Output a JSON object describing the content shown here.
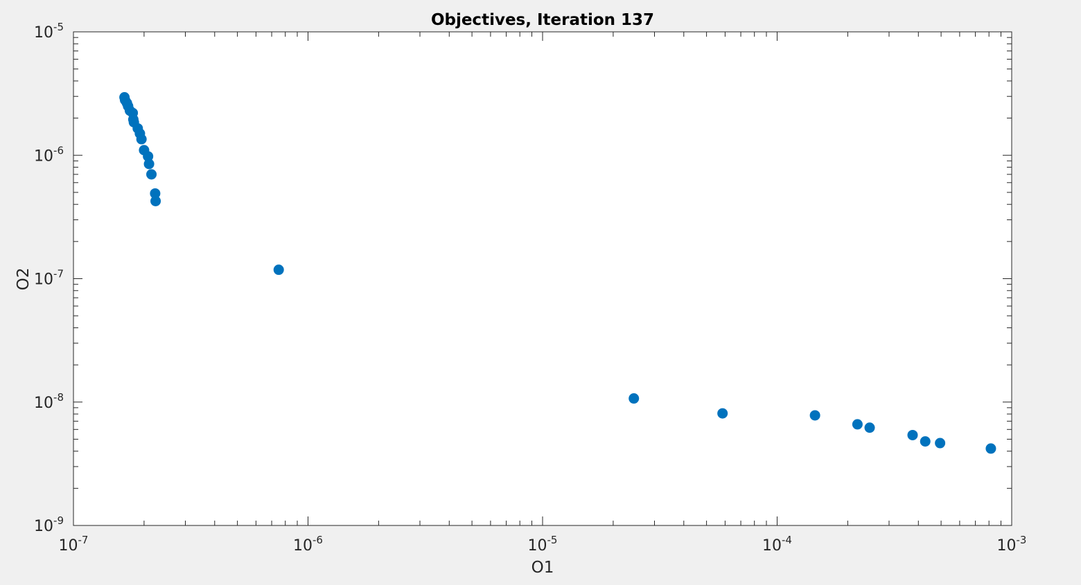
{
  "chart_data": {
    "type": "scatter",
    "title": "Objectives, Iteration 137",
    "xlabel": "O1",
    "ylabel": "O2",
    "xscale": "log",
    "yscale": "log",
    "xlim": [
      1e-07,
      0.001
    ],
    "ylim": [
      1e-09,
      1e-05
    ],
    "grid": false,
    "box": true,
    "x_ticks": [
      {
        "base": "10",
        "exp": "-7"
      },
      {
        "base": "10",
        "exp": "-6"
      },
      {
        "base": "10",
        "exp": "-5"
      },
      {
        "base": "10",
        "exp": "-4"
      },
      {
        "base": "10",
        "exp": "-3"
      }
    ],
    "y_ticks": [
      {
        "base": "10",
        "exp": "-9"
      },
      {
        "base": "10",
        "exp": "-8"
      },
      {
        "base": "10",
        "exp": "-7"
      },
      {
        "base": "10",
        "exp": "-6"
      },
      {
        "base": "10",
        "exp": "-5"
      }
    ],
    "marker_color": "#0072bd",
    "points": [
      {
        "x": 1.65e-07,
        "y": 2.95e-06
      },
      {
        "x": 1.66e-07,
        "y": 2.8e-06
      },
      {
        "x": 1.69e-07,
        "y": 2.65e-06
      },
      {
        "x": 1.71e-07,
        "y": 2.5e-06
      },
      {
        "x": 1.74e-07,
        "y": 2.3e-06
      },
      {
        "x": 1.79e-07,
        "y": 2.2e-06
      },
      {
        "x": 1.8e-07,
        "y": 1.95e-06
      },
      {
        "x": 1.81e-07,
        "y": 1.85e-06
      },
      {
        "x": 1.88e-07,
        "y": 1.65e-06
      },
      {
        "x": 1.92e-07,
        "y": 1.5e-06
      },
      {
        "x": 1.95e-07,
        "y": 1.35e-06
      },
      {
        "x": 2e-07,
        "y": 1.1e-06
      },
      {
        "x": 2.08e-07,
        "y": 9.8e-07
      },
      {
        "x": 2.1e-07,
        "y": 8.5e-07
      },
      {
        "x": 2.15e-07,
        "y": 7e-07
      },
      {
        "x": 2.23e-07,
        "y": 4.9e-07
      },
      {
        "x": 2.24e-07,
        "y": 4.25e-07
      },
      {
        "x": 7.5e-07,
        "y": 1.18e-07
      },
      {
        "x": 2.45e-05,
        "y": 1.07e-08
      },
      {
        "x": 5.85e-05,
        "y": 8.1e-09
      },
      {
        "x": 0.000145,
        "y": 7.8e-09
      },
      {
        "x": 0.00022,
        "y": 6.6e-09
      },
      {
        "x": 0.000248,
        "y": 6.2e-09
      },
      {
        "x": 0.000378,
        "y": 5.4e-09
      },
      {
        "x": 0.000428,
        "y": 4.8e-09
      },
      {
        "x": 0.000495,
        "y": 4.65e-09
      },
      {
        "x": 0.000815,
        "y": 4.2e-09
      }
    ]
  }
}
